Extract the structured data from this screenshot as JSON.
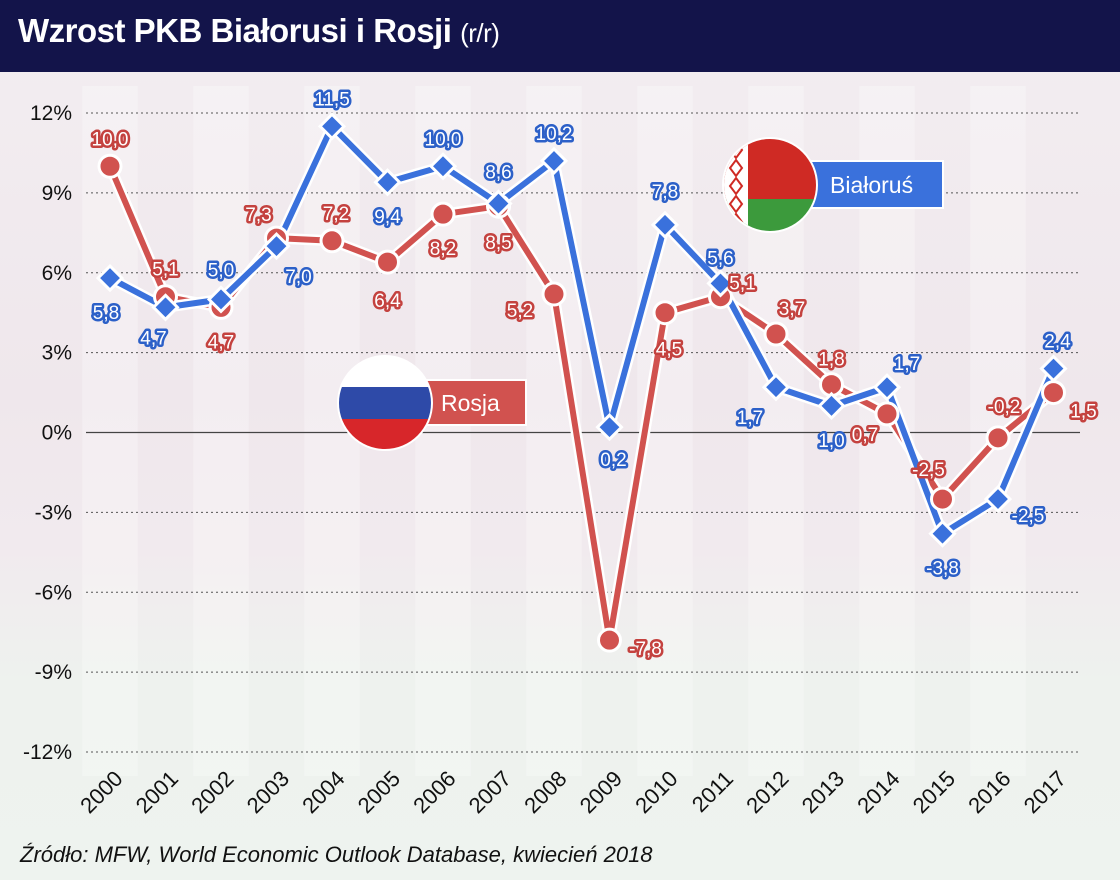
{
  "header": {
    "title": "Wzrost PKB Białorusi i Rosji",
    "title_suffix": "(r/r)"
  },
  "source": "Źródło: MFW, World Economic Outlook Database, kwiecień 2018",
  "colors": {
    "russia": "#d1524f",
    "belarus": "#3a71dc",
    "header_bg": "#13144a"
  },
  "chart_data": {
    "type": "line",
    "title": "Wzrost PKB Białorusi i Rosji (r/r)",
    "x": [
      "2000",
      "2001",
      "2002",
      "2003",
      "2004",
      "2005",
      "2006",
      "2007",
      "2008",
      "2009",
      "2010",
      "2011",
      "2012",
      "2013",
      "2014",
      "2015",
      "2016",
      "2017"
    ],
    "y_ticks": [
      "12%",
      "9%",
      "6%",
      "3%",
      "0%",
      "-3%",
      "-6%",
      "-9%",
      "-12%"
    ],
    "ylim": [
      -12,
      12
    ],
    "grid": "horizontal dotted",
    "series": [
      {
        "name": "Rosja",
        "color": "#d1524f",
        "marker": "circle",
        "values": [
          10.0,
          5.1,
          4.7,
          7.3,
          7.2,
          6.4,
          8.2,
          8.5,
          5.2,
          -7.8,
          4.5,
          5.1,
          3.7,
          1.8,
          0.7,
          -2.5,
          -0.2,
          1.5
        ],
        "labels": [
          "10,0",
          "5,1",
          "4,7",
          "7,3",
          "7,2",
          "6,4",
          "8,2",
          "8,5",
          "5,2",
          "-7,8",
          "4,5",
          "5,1",
          "3,7",
          "1,8",
          "0,7",
          "-2,5",
          "-0,2",
          "1,5"
        ]
      },
      {
        "name": "Białoruś",
        "color": "#3a71dc",
        "marker": "diamond",
        "values": [
          5.8,
          4.7,
          5.0,
          7.0,
          11.5,
          9.4,
          10.0,
          8.6,
          10.2,
          0.2,
          7.8,
          5.6,
          1.7,
          1.0,
          1.7,
          -3.8,
          -2.5,
          2.4
        ],
        "labels": [
          "5,8",
          "4,7",
          "5,0",
          "7,0",
          "11,5",
          "9,4",
          "10,0",
          "8,6",
          "10,2",
          "0,2",
          "7,8",
          "5,6",
          "1,7",
          "1,0",
          "1,7",
          "-3,8",
          "-2,5",
          "2,4"
        ]
      }
    ],
    "legend": [
      {
        "name": "Białoruś",
        "flag": "belarus-flag-icon",
        "placement": "top-right"
      },
      {
        "name": "Rosja",
        "flag": "russia-flag-icon",
        "placement": "center-left"
      }
    ]
  }
}
